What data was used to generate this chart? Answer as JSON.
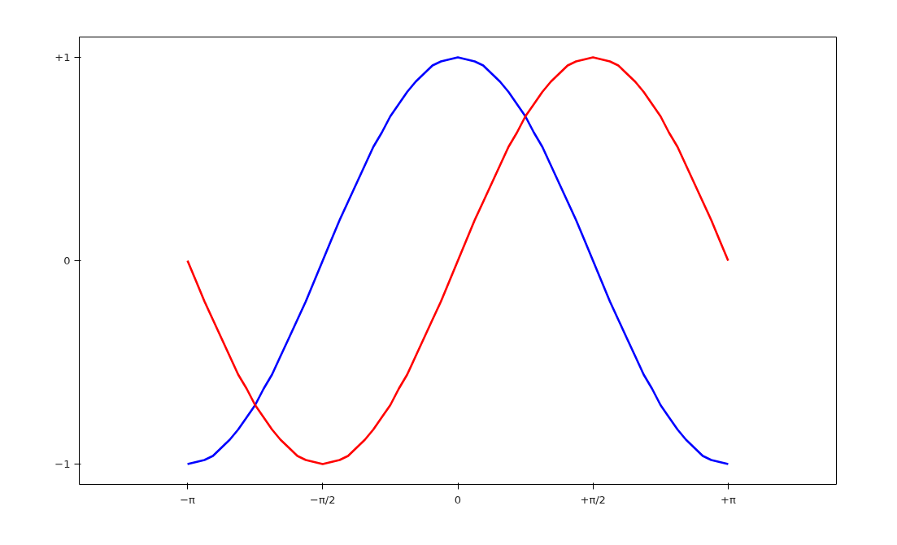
{
  "chart_data": {
    "type": "line",
    "x": [
      -3.142,
      -3.043,
      -2.945,
      -2.847,
      -2.749,
      -2.651,
      -2.553,
      -2.454,
      -2.356,
      -2.258,
      -2.16,
      -2.062,
      -1.963,
      -1.865,
      -1.767,
      -1.669,
      -1.571,
      -1.473,
      -1.374,
      -1.276,
      -1.178,
      -1.08,
      -0.982,
      -0.884,
      -0.785,
      -0.687,
      -0.589,
      -0.491,
      -0.393,
      -0.295,
      -0.196,
      -0.098,
      0,
      0.098,
      0.196,
      0.295,
      0.393,
      0.491,
      0.589,
      0.687,
      0.785,
      0.884,
      0.982,
      1.08,
      1.178,
      1.276,
      1.374,
      1.473,
      1.571,
      1.669,
      1.767,
      1.865,
      1.963,
      2.062,
      2.16,
      2.258,
      2.356,
      2.454,
      2.553,
      2.651,
      2.749,
      2.847,
      2.945,
      3.043,
      3.142
    ],
    "series": [
      {
        "color": "#0000ff",
        "values": [
          -1,
          -0.99,
          -0.98,
          -0.96,
          -0.92,
          -0.88,
          -0.83,
          -0.77,
          -0.71,
          -0.63,
          -0.56,
          -0.47,
          -0.38,
          -0.29,
          -0.2,
          -0.1,
          0,
          0.1,
          0.2,
          0.29,
          0.38,
          0.47,
          0.56,
          0.63,
          0.71,
          0.77,
          0.83,
          0.88,
          0.92,
          0.96,
          0.98,
          0.99,
          1,
          0.99,
          0.98,
          0.96,
          0.92,
          0.88,
          0.83,
          0.77,
          0.71,
          0.63,
          0.56,
          0.47,
          0.38,
          0.29,
          0.2,
          0.1,
          0,
          -0.1,
          -0.2,
          -0.29,
          -0.38,
          -0.47,
          -0.56,
          -0.63,
          -0.71,
          -0.77,
          -0.83,
          -0.88,
          -0.92,
          -0.96,
          -0.98,
          -0.99,
          -1
        ]
      },
      {
        "color": "#ff0000",
        "values": [
          0,
          -0.1,
          -0.2,
          -0.29,
          -0.38,
          -0.47,
          -0.56,
          -0.63,
          -0.71,
          -0.77,
          -0.83,
          -0.88,
          -0.92,
          -0.96,
          -0.98,
          -0.99,
          -1,
          -0.99,
          -0.98,
          -0.96,
          -0.92,
          -0.88,
          -0.83,
          -0.77,
          -0.71,
          -0.63,
          -0.56,
          -0.47,
          -0.38,
          -0.29,
          -0.2,
          -0.1,
          0,
          0.1,
          0.2,
          0.29,
          0.38,
          0.47,
          0.56,
          0.63,
          0.71,
          0.77,
          0.83,
          0.88,
          0.92,
          0.96,
          0.98,
          0.99,
          1,
          0.99,
          0.98,
          0.96,
          0.92,
          0.88,
          0.83,
          0.77,
          0.71,
          0.63,
          0.56,
          0.47,
          0.38,
          0.29,
          0.2,
          0.1,
          0
        ]
      }
    ],
    "xlim": [
      -4.4,
      4.4
    ],
    "ylim": [
      -1.1,
      1.1
    ],
    "xticks": [
      {
        "value": -3.142,
        "label": "−π"
      },
      {
        "value": -1.571,
        "label": "−π/2"
      },
      0,
      {
        "value": 1.571,
        "label": "+π/2"
      },
      {
        "value": 3.142,
        "label": "+π"
      }
    ],
    "yticks": [
      {
        "value": -1,
        "label": "−1"
      },
      0,
      {
        "value": 1,
        "label": "+1"
      }
    ],
    "grid": false,
    "line_style": "solid",
    "marker": "none"
  }
}
